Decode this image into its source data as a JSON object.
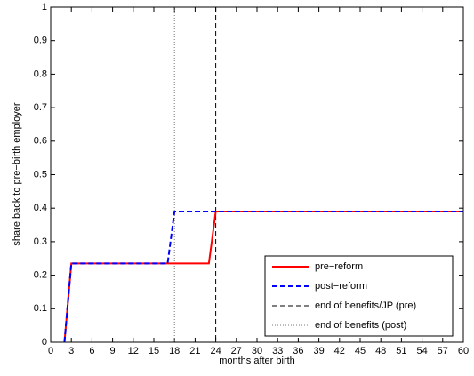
{
  "chart_data": {
    "type": "line",
    "xlabel": "months after birth",
    "ylabel": "share back to pre−birth employer",
    "xlim": [
      0,
      60
    ],
    "xticks": [
      0,
      3,
      6,
      9,
      12,
      15,
      18,
      21,
      24,
      27,
      30,
      33,
      36,
      39,
      42,
      45,
      48,
      51,
      54,
      57,
      60
    ],
    "ylim": [
      0,
      1
    ],
    "yticks": [
      0,
      0.1,
      0.2,
      0.3,
      0.4,
      0.5,
      0.6,
      0.7,
      0.8,
      0.9,
      1
    ],
    "series": [
      {
        "name": "pre−reform",
        "color": "#ff0000",
        "style": "solid",
        "x": [
          2,
          3,
          23,
          24,
          60
        ],
        "values": [
          0,
          0.235,
          0.235,
          0.39,
          0.39
        ]
      },
      {
        "name": "post−reform",
        "color": "#0000ff",
        "style": "dashed",
        "x": [
          2,
          3,
          17,
          18,
          60
        ],
        "values": [
          0,
          0.235,
          0.235,
          0.39,
          0.39
        ]
      }
    ],
    "vlines": [
      {
        "name": "end of benefits/JP (pre)",
        "x": 24,
        "color": "#000000",
        "style": "dashed"
      },
      {
        "name": "end of benefits (post)",
        "x": 18,
        "color": "#777777",
        "style": "dotted"
      }
    ],
    "legend": "lower right"
  }
}
